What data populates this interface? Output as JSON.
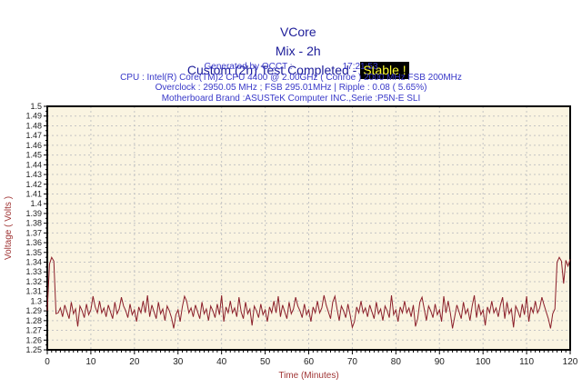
{
  "header": {
    "title": "VCore",
    "subtitle": "Mix - 2h",
    "status_prefix": "Custom (2h) Test Completed - ",
    "status_badge": "Stable !",
    "title_color": "#1c1c99",
    "badge_bg": "#000000",
    "badge_fg": "#ffff33"
  },
  "info": {
    "generated_label": "Generated by OCCT :",
    "generated_time": "17:21:53",
    "cpu_line": "CPU : Intel(R) Core(TM)2 CPU 4400 @ 2.00GHz ( Conroe ) 2000 MHz FSB 200MHz",
    "overclock_line": "Overclock : 2950.05 MHz ; FSB 295.01MHz | Ripple : 0.08 ( 5.65%)",
    "motherboard_line": "Motherboard Brand :ASUSTeK Computer INC.,Serie :P5N-E SLI",
    "text_color": "#3838c8"
  },
  "chart_data": {
    "type": "line",
    "title": "VCore",
    "xlabel": "Time (Minutes)",
    "ylabel": "Voltage ( Volts )",
    "xlim": [
      0,
      120
    ],
    "ylim": [
      1.25,
      1.5
    ],
    "grid": true,
    "legend": "none",
    "x_tick_labels": [
      "0",
      "10",
      "20",
      "30",
      "40",
      "50",
      "60",
      "70",
      "80",
      "90",
      "100",
      "110",
      "120"
    ],
    "x_tick_values": [
      0,
      10,
      20,
      30,
      40,
      50,
      60,
      70,
      80,
      90,
      100,
      110,
      120
    ],
    "y_tick_labels": [
      "1.5",
      "1.49",
      "1.48",
      "1.47",
      "1.46",
      "1.45",
      "1.44",
      "1.43",
      "1.42",
      "1.41",
      "1.4",
      "1.39",
      "1.38",
      "1.37",
      "1.36",
      "1.35",
      "1.34",
      "1.33",
      "1.32",
      "1.31",
      "1.3",
      "1.29",
      "1.28",
      "1.27",
      "1.26",
      "1.25"
    ],
    "y_tick_values": [
      1.5,
      1.49,
      1.48,
      1.47,
      1.46,
      1.45,
      1.44,
      1.43,
      1.42,
      1.41,
      1.4,
      1.39,
      1.38,
      1.37,
      1.36,
      1.35,
      1.34,
      1.33,
      1.32,
      1.31,
      1.3,
      1.29,
      1.28,
      1.27,
      1.26,
      1.25
    ],
    "plot_bg": "#faf4e1",
    "grid_color": "#c4c4c4",
    "axis_color": "#000000",
    "tick_label_color": "#222222",
    "axis_title_color": "#a03535",
    "series": [
      {
        "name": "VCore",
        "color": "#8b1f2a",
        "x_start": 0,
        "x_step": 0.5,
        "values": [
          1.29,
          1.338,
          1.345,
          1.341,
          1.287,
          1.288,
          1.293,
          1.284,
          1.296,
          1.289,
          1.282,
          1.299,
          1.287,
          1.292,
          1.274,
          1.295,
          1.29,
          1.283,
          1.297,
          1.286,
          1.291,
          1.305,
          1.294,
          1.288,
          1.3,
          1.288,
          1.293,
          1.284,
          1.296,
          1.289,
          1.282,
          1.299,
          1.287,
          1.292,
          1.304,
          1.295,
          1.29,
          1.283,
          1.297,
          1.286,
          1.291,
          1.279,
          1.294,
          1.288,
          1.3,
          1.288,
          1.306,
          1.284,
          1.296,
          1.289,
          1.282,
          1.299,
          1.287,
          1.292,
          1.28,
          1.295,
          1.29,
          1.283,
          1.272,
          1.286,
          1.291,
          1.279,
          1.294,
          1.305,
          1.3,
          1.288,
          1.293,
          1.284,
          1.296,
          1.289,
          1.282,
          1.299,
          1.287,
          1.292,
          1.28,
          1.295,
          1.29,
          1.283,
          1.297,
          1.286,
          1.306,
          1.279,
          1.294,
          1.288,
          1.3,
          1.288,
          1.293,
          1.284,
          1.304,
          1.289,
          1.282,
          1.299,
          1.287,
          1.292,
          1.275,
          1.295,
          1.29,
          1.283,
          1.297,
          1.286,
          1.291,
          1.279,
          1.294,
          1.288,
          1.3,
          1.288,
          1.305,
          1.284,
          1.296,
          1.289,
          1.282,
          1.299,
          1.287,
          1.292,
          1.304,
          1.295,
          1.29,
          1.283,
          1.297,
          1.286,
          1.291,
          1.279,
          1.294,
          1.288,
          1.3,
          1.288,
          1.293,
          1.306,
          1.296,
          1.289,
          1.282,
          1.299,
          1.305,
          1.292,
          1.28,
          1.295,
          1.29,
          1.283,
          1.297,
          1.286,
          1.273,
          1.279,
          1.294,
          1.288,
          1.3,
          1.288,
          1.293,
          1.284,
          1.296,
          1.289,
          1.282,
          1.299,
          1.287,
          1.292,
          1.28,
          1.295,
          1.29,
          1.283,
          1.306,
          1.286,
          1.291,
          1.279,
          1.294,
          1.288,
          1.3,
          1.288,
          1.293,
          1.284,
          1.296,
          1.274,
          1.282,
          1.299,
          1.304,
          1.292,
          1.28,
          1.295,
          1.29,
          1.283,
          1.297,
          1.286,
          1.291,
          1.279,
          1.305,
          1.288,
          1.3,
          1.288,
          1.272,
          1.284,
          1.296,
          1.289,
          1.282,
          1.299,
          1.287,
          1.292,
          1.28,
          1.295,
          1.306,
          1.283,
          1.297,
          1.286,
          1.291,
          1.275,
          1.294,
          1.288,
          1.3,
          1.288,
          1.293,
          1.284,
          1.296,
          1.304,
          1.282,
          1.299,
          1.287,
          1.292,
          1.273,
          1.295,
          1.29,
          1.283,
          1.297,
          1.286,
          1.305,
          1.279,
          1.294,
          1.288,
          1.3,
          1.288,
          1.293,
          1.304,
          1.296,
          1.289,
          1.282,
          1.272,
          1.287,
          1.292,
          1.34,
          1.345,
          1.341,
          1.318,
          1.342,
          1.336,
          1.343
        ]
      }
    ]
  }
}
